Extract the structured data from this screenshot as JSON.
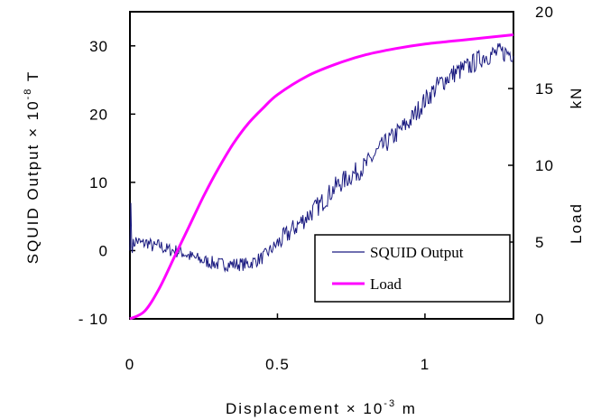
{
  "chart_data": {
    "type": "line",
    "xlabel": {
      "main": "Displacement  × 10",
      "sup": "-3",
      "unit": " m"
    },
    "ylabel_left": {
      "main": "SQUID Output  × 10",
      "sup": "-8",
      "unit": " T"
    },
    "ylabel_right": {
      "main": "Load",
      "unit": "kN"
    },
    "xlim": [
      0,
      1.3
    ],
    "ylim_left": [
      -10,
      35
    ],
    "ylim_right": [
      0,
      20
    ],
    "x_ticks": [
      {
        "value": 0,
        "label": "0"
      },
      {
        "value": 0.5,
        "label": "0.5"
      },
      {
        "value": 1,
        "label": "1"
      }
    ],
    "y_left_ticks": [
      {
        "value": -10,
        "label": "- 10"
      },
      {
        "value": 0,
        "label": "0"
      },
      {
        "value": 10,
        "label": "10"
      },
      {
        "value": 20,
        "label": "20"
      },
      {
        "value": 30,
        "label": "30"
      }
    ],
    "y_right_ticks": [
      {
        "value": 0,
        "label": "0"
      },
      {
        "value": 5,
        "label": "5"
      },
      {
        "value": 10,
        "label": "10"
      },
      {
        "value": 15,
        "label": "15"
      },
      {
        "value": 20,
        "label": "20"
      }
    ],
    "legend_position": "bottom-right",
    "series": [
      {
        "name": "SQUID Output",
        "axis": "left",
        "color": "#1a1a80",
        "points": [
          [
            0.0,
            0.0
          ],
          [
            0.003,
            7.0
          ],
          [
            0.006,
            0.5
          ],
          [
            0.02,
            1.5
          ],
          [
            0.04,
            1.0
          ],
          [
            0.06,
            1.2
          ],
          [
            0.08,
            0.5
          ],
          [
            0.1,
            0.8
          ],
          [
            0.12,
            0.2
          ],
          [
            0.15,
            0.0
          ],
          [
            0.18,
            -0.3
          ],
          [
            0.2,
            -0.8
          ],
          [
            0.25,
            -1.5
          ],
          [
            0.3,
            -2.0
          ],
          [
            0.35,
            -2.0
          ],
          [
            0.4,
            -2.0
          ],
          [
            0.45,
            -1.0
          ],
          [
            0.5,
            1.0
          ],
          [
            0.55,
            3.0
          ],
          [
            0.6,
            5.0
          ],
          [
            0.65,
            7.0
          ],
          [
            0.7,
            9.5
          ],
          [
            0.75,
            11.0
          ],
          [
            0.8,
            12.5
          ],
          [
            0.85,
            15.0
          ],
          [
            0.9,
            17.0
          ],
          [
            0.95,
            19.0
          ],
          [
            1.0,
            22.0
          ],
          [
            1.05,
            24.5
          ],
          [
            1.1,
            26.0
          ],
          [
            1.15,
            27.0
          ],
          [
            1.2,
            28.5
          ],
          [
            1.25,
            29.0
          ],
          [
            1.3,
            29.0
          ]
        ]
      },
      {
        "name": "Load",
        "axis": "right",
        "color": "#ff00ff",
        "points": [
          [
            0.0,
            0.0
          ],
          [
            0.05,
            0.5
          ],
          [
            0.1,
            2.0
          ],
          [
            0.15,
            4.0
          ],
          [
            0.2,
            6.0
          ],
          [
            0.25,
            8.0
          ],
          [
            0.3,
            9.8
          ],
          [
            0.35,
            11.4
          ],
          [
            0.4,
            12.7
          ],
          [
            0.45,
            13.7
          ],
          [
            0.5,
            14.6
          ],
          [
            0.6,
            15.8
          ],
          [
            0.7,
            16.6
          ],
          [
            0.8,
            17.2
          ],
          [
            0.9,
            17.6
          ],
          [
            1.0,
            17.9
          ],
          [
            1.1,
            18.1
          ],
          [
            1.2,
            18.3
          ],
          [
            1.3,
            18.5
          ]
        ]
      }
    ]
  }
}
